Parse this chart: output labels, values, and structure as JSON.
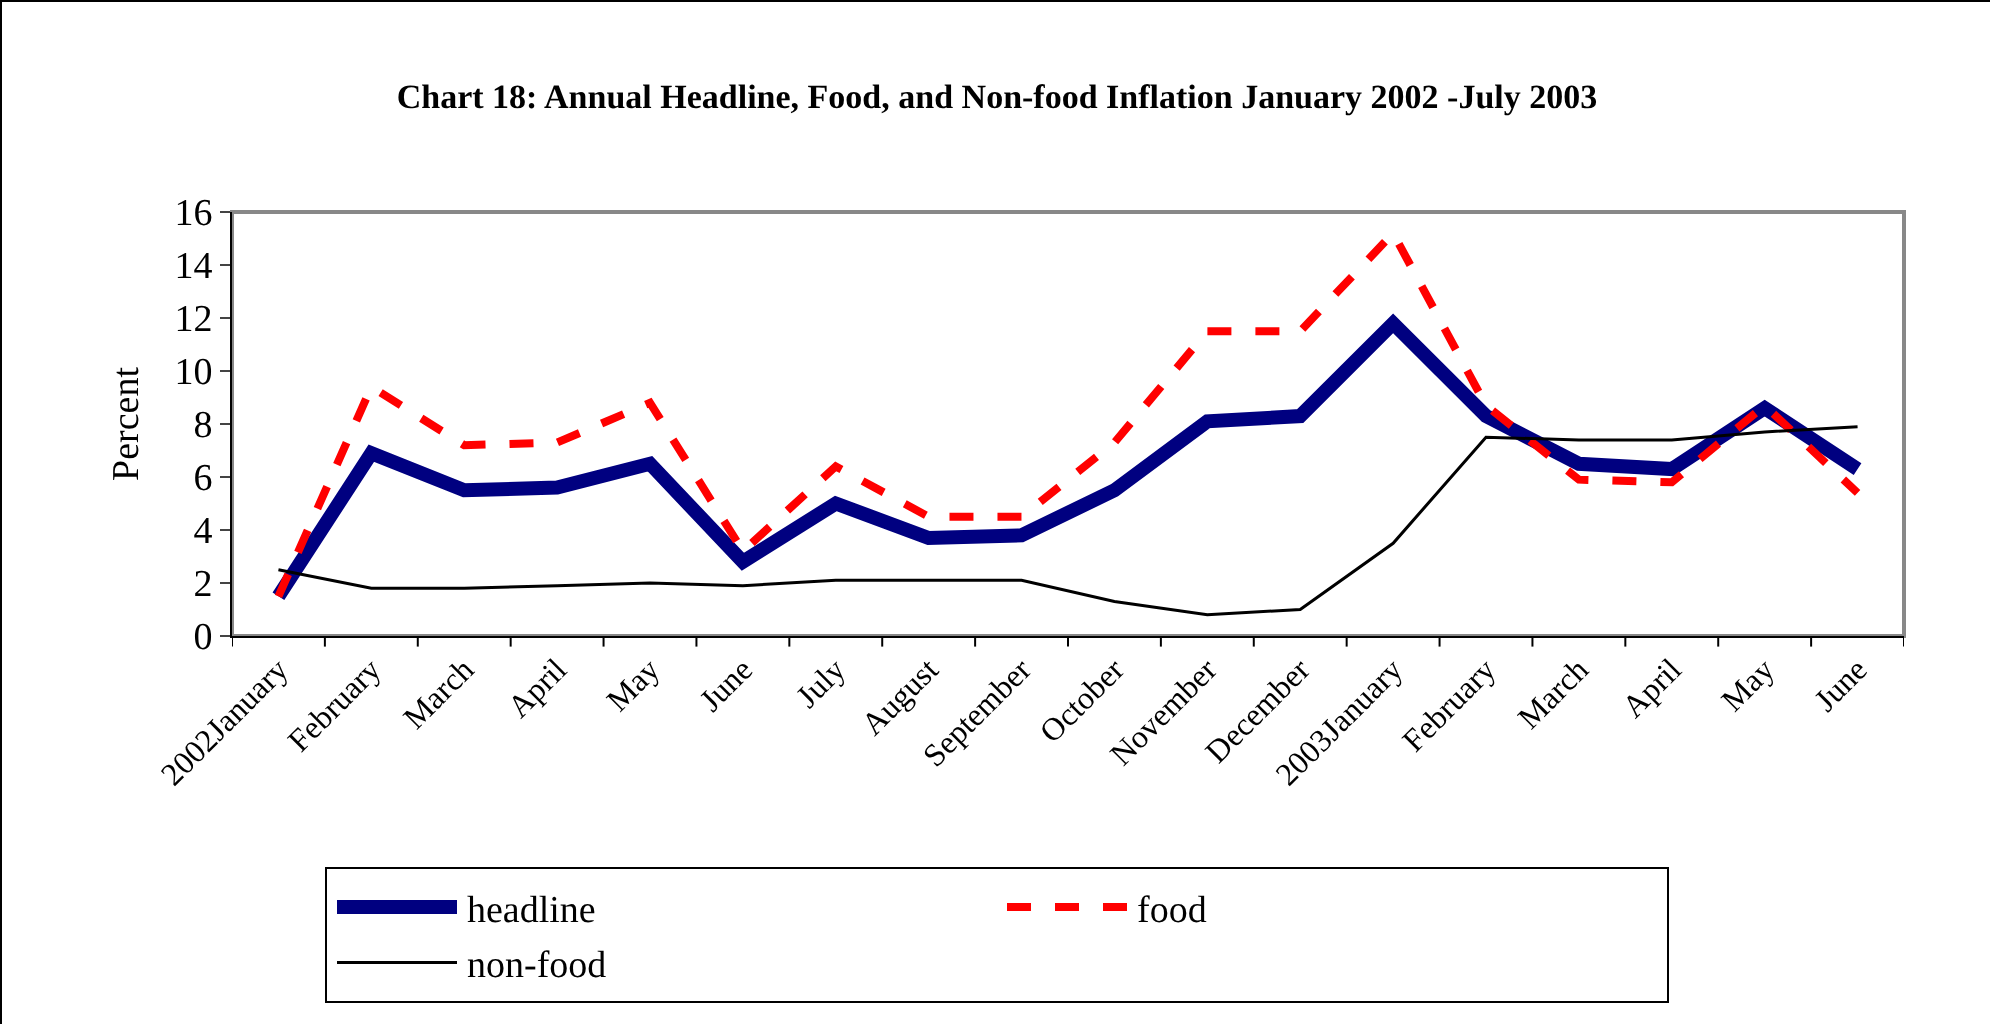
{
  "chart_data": {
    "type": "line",
    "title": "Chart 18: Annual Headline, Food, and Non-food Inflation January 2002 -July 2003",
    "ylabel": "Percent",
    "categories": [
      "2002January",
      "February",
      "March",
      "April",
      "May",
      "June",
      "July",
      "August",
      "September",
      "October",
      "November",
      "December",
      "2003January",
      "February",
      "March",
      "April",
      "May",
      "June"
    ],
    "series": [
      {
        "name": "headline",
        "color": "#000080",
        "line_style": "solid",
        "values": [
          1.5,
          6.9,
          5.5,
          5.6,
          6.5,
          2.8,
          5.0,
          3.7,
          3.8,
          5.5,
          8.1,
          8.3,
          11.8,
          8.3,
          6.5,
          6.3,
          8.6,
          6.3
        ]
      },
      {
        "name": "food",
        "color": "#ff0000",
        "line_style": "dashed",
        "values": [
          1.5,
          9.4,
          7.2,
          7.3,
          8.8,
          3.2,
          6.4,
          4.5,
          4.5,
          7.3,
          11.5,
          11.5,
          15.2,
          8.7,
          5.9,
          5.8,
          8.7,
          5.4
        ]
      },
      {
        "name": "non-food",
        "color": "#000000",
        "line_style": "solid",
        "values": [
          2.5,
          1.8,
          1.8,
          1.9,
          2.0,
          1.9,
          2.1,
          2.1,
          2.1,
          1.3,
          0.8,
          1.0,
          3.5,
          7.5,
          7.4,
          7.4,
          7.7,
          7.9
        ]
      }
    ],
    "ylim": [
      0,
      16
    ],
    "yticks": [
      0,
      2,
      4,
      6,
      8,
      10,
      12,
      14,
      16
    ],
    "grid": false,
    "legend": "bottom",
    "marker": "none"
  }
}
